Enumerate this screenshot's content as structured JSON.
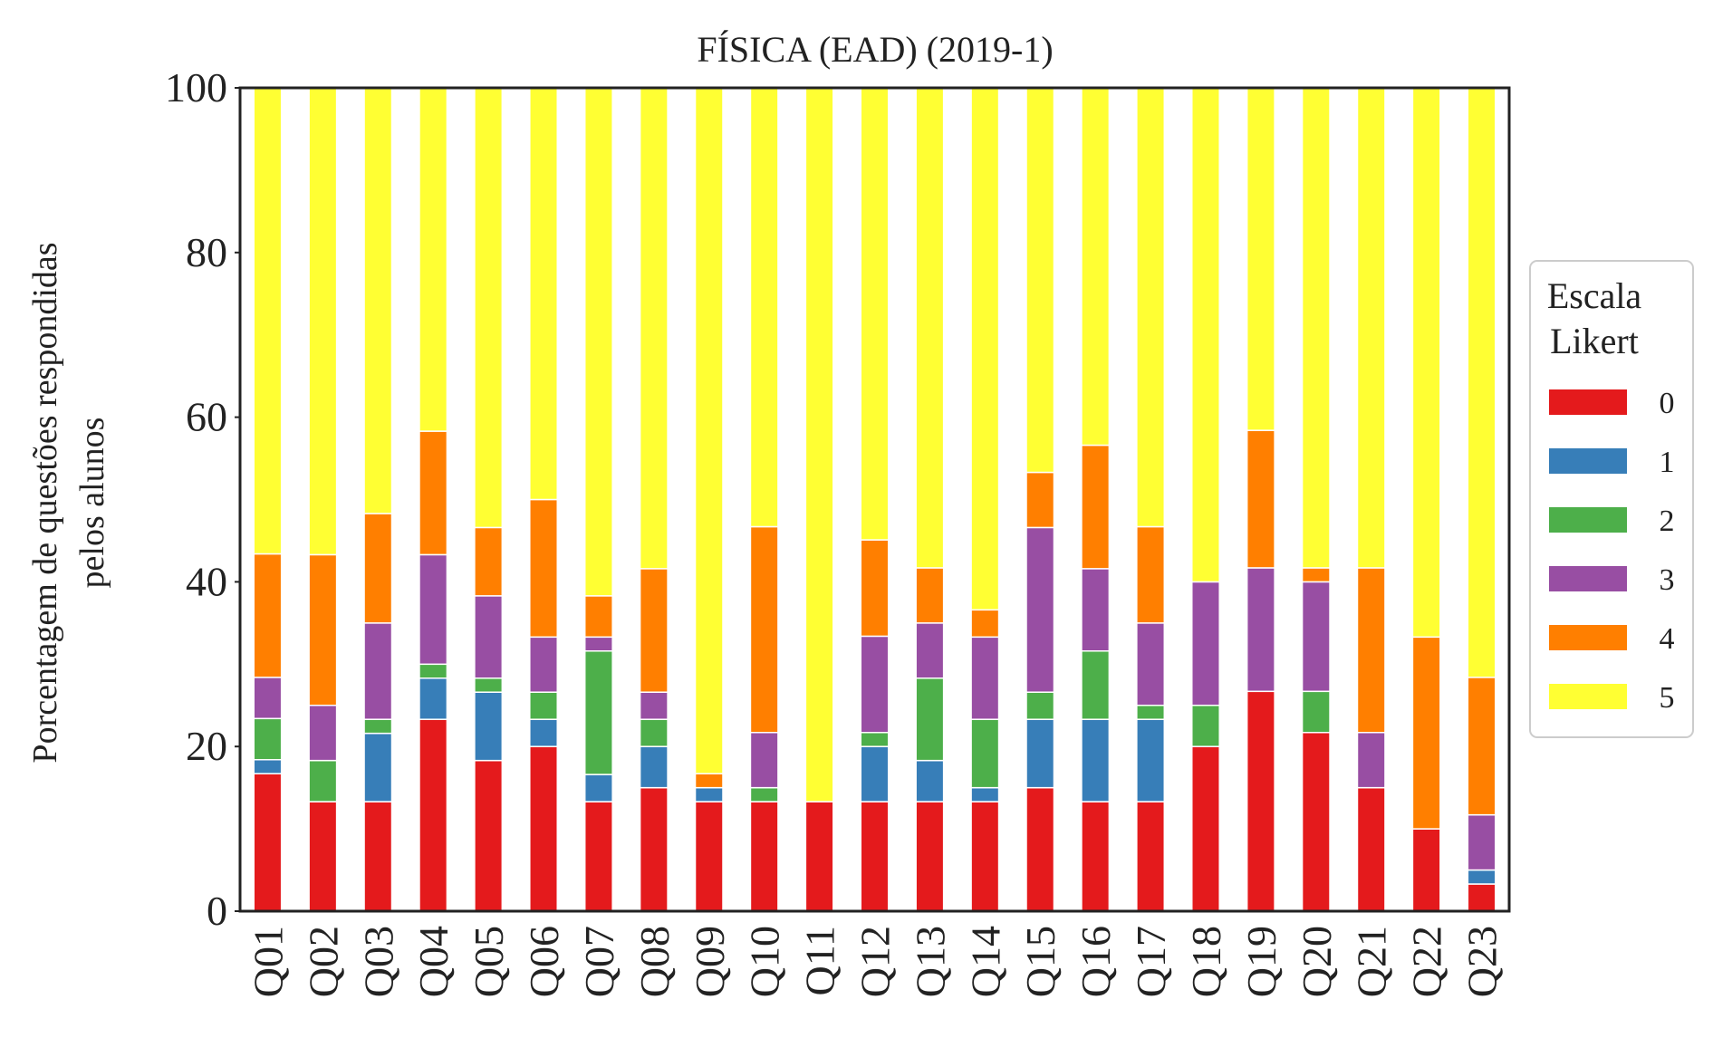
{
  "chart_data": {
    "type": "bar",
    "stacked": true,
    "title": "FÍSICA (EAD) (2019-1)",
    "ylabel_lines": [
      "Porcentagem de questões respondidas",
      "pelos alunos"
    ],
    "xlabel": "",
    "ylim": [
      0,
      100
    ],
    "yticks": [
      "0",
      "20",
      "40",
      "60",
      "80",
      "100"
    ],
    "grid": false,
    "legend": {
      "title_lines": [
        "Escala",
        "Likert"
      ],
      "placement": "right"
    },
    "categories": [
      "Q01",
      "Q02",
      "Q03",
      "Q04",
      "Q05",
      "Q06",
      "Q07",
      "Q08",
      "Q09",
      "Q10",
      "Q11",
      "Q12",
      "Q13",
      "Q14",
      "Q15",
      "Q16",
      "Q17",
      "Q18",
      "Q19",
      "Q20",
      "Q21",
      "Q22",
      "Q23"
    ],
    "series": [
      {
        "name": "0",
        "color": "#e41a1c",
        "values": [
          16.7,
          13.3,
          13.3,
          23.3,
          18.3,
          20.0,
          13.3,
          15.0,
          13.3,
          13.3,
          13.3,
          13.3,
          13.3,
          13.3,
          15.0,
          13.3,
          13.3,
          20.0,
          26.7,
          21.7,
          15.0,
          10.0,
          3.3
        ]
      },
      {
        "name": "1",
        "color": "#377eb8",
        "values": [
          1.7,
          0.0,
          8.3,
          5.0,
          8.3,
          3.3,
          3.3,
          5.0,
          1.7,
          0.0,
          0.0,
          6.7,
          5.0,
          1.7,
          8.3,
          10.0,
          10.0,
          0.0,
          0.0,
          0.0,
          0.0,
          0.0,
          1.7
        ]
      },
      {
        "name": "2",
        "color": "#4daf4a",
        "values": [
          5.0,
          5.0,
          1.7,
          1.7,
          1.7,
          3.3,
          15.0,
          3.3,
          0.0,
          1.7,
          0.0,
          1.7,
          10.0,
          8.3,
          3.3,
          8.3,
          1.7,
          5.0,
          0.0,
          5.0,
          0.0,
          0.0,
          0.0
        ]
      },
      {
        "name": "3",
        "color": "#984ea3",
        "values": [
          5.0,
          6.7,
          11.7,
          13.3,
          10.0,
          6.7,
          1.7,
          3.3,
          0.0,
          6.7,
          0.0,
          11.7,
          6.7,
          10.0,
          20.0,
          10.0,
          10.0,
          15.0,
          15.0,
          13.3,
          6.7,
          0.0,
          6.7
        ]
      },
      {
        "name": "4",
        "color": "#ff7f00",
        "values": [
          15.0,
          18.3,
          13.3,
          15.0,
          8.3,
          16.7,
          5.0,
          15.0,
          1.7,
          25.0,
          0.0,
          11.7,
          6.7,
          3.3,
          6.7,
          15.0,
          11.7,
          0.0,
          16.7,
          1.7,
          20.0,
          23.3,
          16.7
        ]
      },
      {
        "name": "5",
        "color": "#ffff33",
        "values": [
          56.6,
          56.7,
          51.7,
          41.7,
          53.4,
          50.0,
          61.7,
          58.4,
          83.3,
          53.3,
          86.7,
          55.0,
          58.3,
          63.4,
          46.7,
          43.4,
          53.3,
          60.0,
          41.6,
          58.3,
          58.3,
          66.7,
          71.6
        ]
      }
    ]
  }
}
